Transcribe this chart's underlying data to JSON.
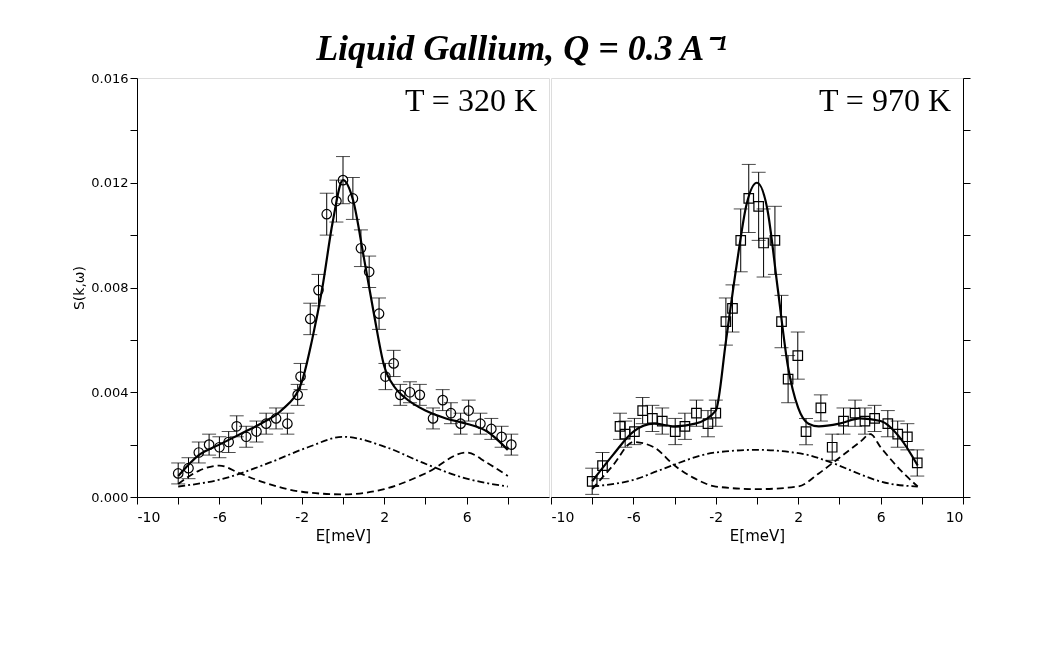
{
  "chart_data": [
    {
      "type": "scatter",
      "title": "Liquid Gallium, Q = 0.3 A⁻¹",
      "xlabel": "E[meV]",
      "ylabel": "S(k,ω)",
      "annotations": [
        "T = 320 K"
      ],
      "grid": false,
      "xlim": [
        -10,
        10
      ],
      "ylim": [
        0,
        0.016
      ],
      "xticks": [
        {
          "value": -10,
          "label": "-10"
        },
        {
          "value": -8,
          "label": null
        },
        {
          "value": -6,
          "label": "-6"
        },
        {
          "value": -4,
          "label": null
        },
        {
          "value": -2,
          "label": "-2"
        },
        {
          "value": 0,
          "label": null
        },
        {
          "value": 2,
          "label": "2"
        },
        {
          "value": 4,
          "label": null
        },
        {
          "value": 6,
          "label": "6"
        },
        {
          "value": 8,
          "label": null
        }
      ],
      "yticks": [
        {
          "value": 0,
          "label": "0.000"
        },
        {
          "value": 0.002,
          "label": null
        },
        {
          "value": 0.004,
          "label": "0.004"
        },
        {
          "value": 0.006,
          "label": null
        },
        {
          "value": 0.008,
          "label": "0.008"
        },
        {
          "value": 0.01,
          "label": null
        },
        {
          "value": 0.012,
          "label": "0.012"
        },
        {
          "value": 0.014,
          "label": null
        },
        {
          "value": 0.016,
          "label": "0.016"
        }
      ],
      "series": [
        {
          "marker": "circle",
          "color": "#000000",
          "x": [
            -8.0,
            -7.5,
            -7.0,
            -6.5,
            -6.0,
            -5.55,
            -5.16,
            -4.7,
            -4.2,
            -3.73,
            -3.25,
            -2.7,
            -2.2,
            -2.06,
            -1.59,
            -1.19,
            -0.79,
            -0.32,
            0.0,
            0.48,
            0.87,
            1.27,
            1.75,
            2.06,
            2.46,
            2.78,
            3.25,
            3.73,
            4.37,
            4.84,
            5.24,
            5.71,
            6.1,
            6.67,
            7.2,
            7.7,
            8.17
          ],
          "values": [
            0.0009,
            0.0011,
            0.0017,
            0.002,
            0.0019,
            0.0021,
            0.0027,
            0.0023,
            0.0025,
            0.0028,
            0.003,
            0.0028,
            0.0039,
            0.0046,
            0.0068,
            0.0079,
            0.0108,
            0.0113,
            0.0121,
            0.0114,
            0.0095,
            0.0086,
            0.007,
            0.0046,
            0.0051,
            0.0039,
            0.004,
            0.0039,
            0.003,
            0.0037,
            0.0032,
            0.0028,
            0.0033,
            0.0028,
            0.0026,
            0.0023,
            0.002
          ],
          "errors": [
            0.0004,
            0.0004,
            0.0004,
            0.0004,
            0.0004,
            0.0004,
            0.0004,
            0.0004,
            0.0004,
            0.0004,
            0.0004,
            0.0004,
            0.0004,
            0.0005,
            0.0006,
            0.0006,
            0.0008,
            0.0008,
            0.0009,
            0.0008,
            0.0007,
            0.0006,
            0.0006,
            0.0005,
            0.0005,
            0.0004,
            0.0004,
            0.0004,
            0.0004,
            0.0004,
            0.0004,
            0.0004,
            0.0004,
            0.0004,
            0.0004,
            0.0004,
            0.0004
          ]
        },
        {
          "type": "line",
          "line_style": "solid",
          "color": "#000000",
          "x": [
            -8,
            -7,
            -6,
            -5,
            -4,
            -3,
            -2,
            -1.5,
            -1,
            -0.5,
            0,
            0.5,
            1,
            1.5,
            2,
            2.5,
            3,
            4,
            5,
            6,
            7,
            8
          ],
          "values": [
            0.0008,
            0.0016,
            0.002,
            0.0024,
            0.0028,
            0.0033,
            0.0044,
            0.006,
            0.008,
            0.0105,
            0.0121,
            0.0113,
            0.0092,
            0.007,
            0.005,
            0.0042,
            0.0038,
            0.0033,
            0.003,
            0.0028,
            0.0025,
            0.0018
          ]
        },
        {
          "type": "line",
          "line_style": "dotted",
          "color": "#000000",
          "x": [
            -8,
            -5.8,
            -3.6,
            -1.7,
            0,
            2.1,
            3.9,
            6,
            7.2,
            8
          ],
          "values": [
            0.0004,
            0.0007,
            0.0013,
            0.0019,
            0.0023,
            0.0019,
            0.0013,
            0.0007,
            0.0005,
            0.0004
          ]
        },
        {
          "type": "line",
          "line_style": "dashed",
          "color": "#000000",
          "x": [
            -8,
            -7,
            -6,
            -5,
            -4,
            -2,
            0,
            2,
            4,
            6,
            7,
            8
          ],
          "values": [
            0.0005,
            0.001,
            0.0012,
            0.0009,
            0.0006,
            0.0002,
            0.0001,
            0.0003,
            0.0009,
            0.0017,
            0.0013,
            0.0008
          ]
        }
      ]
    },
    {
      "type": "scatter",
      "xlabel": "E[meV]",
      "annotations": [
        "T = 970 K"
      ],
      "grid": false,
      "tick_labels": "x",
      "xlim": [
        -10,
        10
      ],
      "ylim": [
        0,
        0.016
      ],
      "xticks": [
        {
          "value": -10,
          "label": "-10"
        },
        {
          "value": -8,
          "label": null
        },
        {
          "value": -6,
          "label": "-6"
        },
        {
          "value": -4,
          "label": null
        },
        {
          "value": -2,
          "label": "-2"
        },
        {
          "value": 0,
          "label": null
        },
        {
          "value": 2,
          "label": "2"
        },
        {
          "value": 4,
          "label": null
        },
        {
          "value": 6,
          "label": "6"
        },
        {
          "value": 8,
          "label": null
        },
        {
          "value": 10,
          "label": "10"
        }
      ],
      "yticks": [
        {
          "value": 0,
          "label": null
        },
        {
          "value": 0.002,
          "label": null
        },
        {
          "value": 0.004,
          "label": null
        },
        {
          "value": 0.006,
          "label": null
        },
        {
          "value": 0.008,
          "label": null
        },
        {
          "value": 0.01,
          "label": null
        },
        {
          "value": 0.012,
          "label": null
        },
        {
          "value": 0.014,
          "label": null
        },
        {
          "value": 0.016,
          "label": null
        }
      ],
      "series": [
        {
          "marker": "square",
          "color": "#000000",
          "x": [
            -8.0,
            -7.5,
            -6.65,
            -6.4,
            -5.95,
            -5.55,
            -5.08,
            -4.6,
            -3.97,
            -3.5,
            -2.94,
            -2.38,
            -2.0,
            -1.51,
            -1.19,
            -0.79,
            -0.4,
            0.08,
            0.32,
            0.87,
            1.19,
            1.51,
            1.98,
            2.38,
            3.1,
            3.65,
            4.2,
            4.76,
            5.24,
            5.71,
            6.35,
            6.83,
            7.3,
            7.78
          ],
          "values": [
            0.0006,
            0.0012,
            0.0027,
            0.0024,
            0.0025,
            0.0033,
            0.003,
            0.0029,
            0.0025,
            0.0027,
            0.0032,
            0.0028,
            0.0032,
            0.0067,
            0.0072,
            0.0098,
            0.0114,
            0.0111,
            0.0097,
            0.0098,
            0.0067,
            0.0045,
            0.0054,
            0.0025,
            0.0034,
            0.0019,
            0.0029,
            0.0032,
            0.0029,
            0.003,
            0.0028,
            0.0024,
            0.0023,
            0.0013
          ],
          "errors": [
            0.0005,
            0.0005,
            0.0005,
            0.0005,
            0.0005,
            0.0005,
            0.0005,
            0.0005,
            0.0005,
            0.0005,
            0.0005,
            0.0005,
            0.0005,
            0.0009,
            0.0009,
            0.0012,
            0.0013,
            0.0013,
            0.0013,
            0.0013,
            0.001,
            0.0009,
            0.0009,
            0.0005,
            0.0005,
            0.0005,
            0.0005,
            0.0005,
            0.0005,
            0.0005,
            0.0005,
            0.0005,
            0.0005,
            0.0005
          ]
        },
        {
          "type": "line",
          "line_style": "solid",
          "color": "#000000",
          "x": [
            -8,
            -7,
            -6,
            -5,
            -4,
            -3,
            -2,
            -1.5,
            -1,
            -0.5,
            0,
            0.5,
            1,
            1.5,
            2,
            2.5,
            3,
            4,
            5,
            6,
            7,
            7.8
          ],
          "values": [
            0.0006,
            0.0016,
            0.0025,
            0.0028,
            0.0027,
            0.0028,
            0.0033,
            0.006,
            0.0088,
            0.0112,
            0.012,
            0.011,
            0.008,
            0.005,
            0.0034,
            0.0028,
            0.0027,
            0.0028,
            0.003,
            0.0029,
            0.0022,
            0.0012
          ]
        },
        {
          "type": "line",
          "line_style": "dotted",
          "color": "#000000",
          "x": [
            -8,
            -5.8,
            -4.8,
            -2,
            0,
            2.5,
            3.3,
            6.5,
            7.8
          ],
          "values": [
            0.0004,
            0.0007,
            0.001,
            0.0017,
            0.0018,
            0.0016,
            0.0014,
            0.0005,
            0.0004
          ]
        },
        {
          "type": "line",
          "line_style": "dashed",
          "color": "#000000",
          "x": [
            -8,
            -7,
            -6,
            -5,
            -4,
            -3,
            -2,
            0,
            2,
            3,
            4,
            5,
            5.5,
            6,
            7,
            7.8
          ],
          "values": [
            0.0003,
            0.0012,
            0.0021,
            0.0019,
            0.0012,
            0.0007,
            0.0004,
            0.0003,
            0.0004,
            0.0009,
            0.0015,
            0.0021,
            0.0024,
            0.0019,
            0.001,
            0.0004
          ]
        }
      ]
    }
  ]
}
